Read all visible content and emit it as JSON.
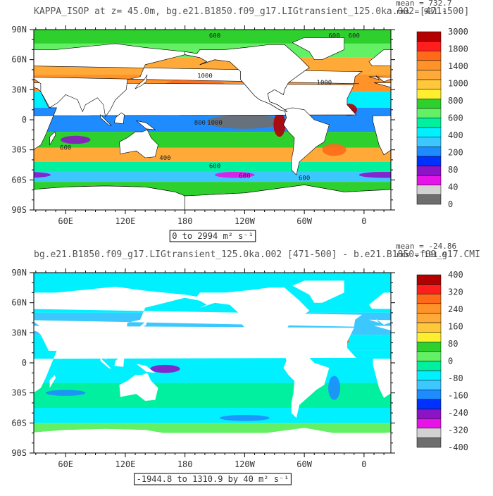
{
  "panels": [
    {
      "title": "KAPPA_ISOP at z=  45.0m, bg.e21.B1850.f09_g17.LIGtransient_125.0ka.002 [471-500]",
      "stats": [
        "mean = 732.7",
        "rms = 931.1"
      ],
      "lat_labels": [
        "90N",
        "60N",
        "30N",
        "0",
        "30S",
        "60S",
        "90S"
      ],
      "lon_labels": [
        "60E",
        "120E",
        "180",
        "120W",
        "60W",
        "0"
      ],
      "range_label": "0 to 2994 m² s⁻¹",
      "colorbar": {
        "labels": [
          "3000",
          "1800",
          "1400",
          "1000",
          "800",
          "600",
          "400",
          "200",
          "80",
          "40",
          "0"
        ],
        "colors": [
          "#b40000",
          "#ff1e1e",
          "#ff6a1a",
          "#ff9228",
          "#ffaa38",
          "#ffc83c",
          "#ffee30",
          "#2ed02e",
          "#64f064",
          "#00f0a0",
          "#00f0ff",
          "#3cc8ff",
          "#1e8cff",
          "#0032ff",
          "#8c14c8",
          "#e614e6",
          "#d2d2d2",
          "#6e6e6e"
        ]
      },
      "contour_labels": [
        "600",
        "600",
        "600",
        "1000",
        "1000",
        "600",
        "800",
        "1000",
        "600",
        "400",
        "600",
        "600"
      ]
    },
    {
      "title": "bg.e21.B1850.f09_g17.LIGtransient_125.0ka.002 [471-500] - b.e21.B1850.f09_g17.CMI",
      "stats": [
        "mean = -24.86",
        "rms = 191.9"
      ],
      "lat_labels": [
        "90N",
        "60N",
        "30N",
        "0",
        "30S",
        "60S",
        "90S"
      ],
      "lon_labels": [
        "60E",
        "120E",
        "180",
        "120W",
        "60W",
        "0"
      ],
      "range_label": "-1944.8 to 1310.9 by 40 m² s⁻¹",
      "colorbar": {
        "labels": [
          "400",
          "320",
          "240",
          "160",
          "80",
          "0",
          "-80",
          "-160",
          "-240",
          "-320",
          "-400"
        ],
        "colors": [
          "#b40000",
          "#ff1e1e",
          "#ff6a1a",
          "#ff9228",
          "#ffaa38",
          "#ffc83c",
          "#ffee30",
          "#2ed02e",
          "#64f064",
          "#00f0a0",
          "#00f0ff",
          "#3cc8ff",
          "#1e8cff",
          "#0032ff",
          "#8c14c8",
          "#e614e6",
          "#d2d2d2",
          "#6e6e6e"
        ]
      },
      "contour_labels": []
    }
  ]
}
